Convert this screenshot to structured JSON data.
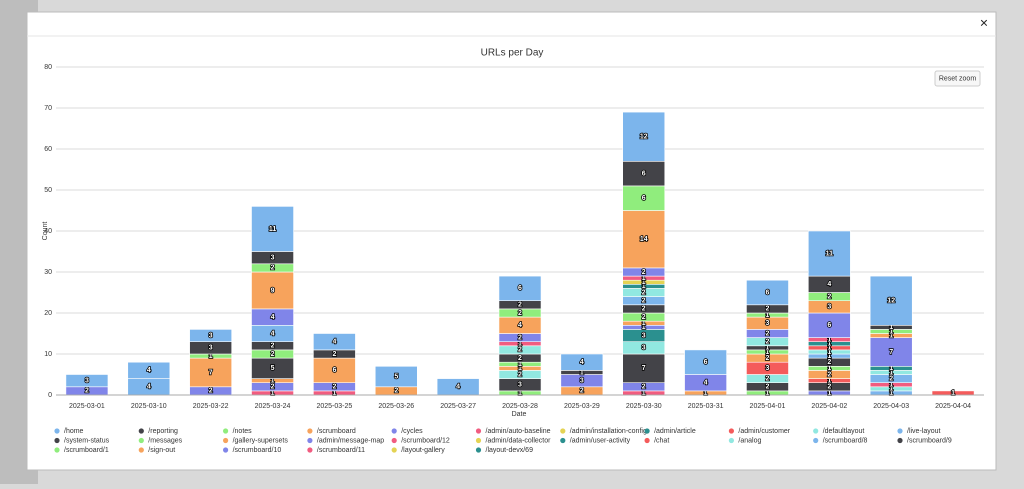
{
  "modal": {
    "close_label": "×",
    "reset_zoom": "Reset zoom"
  },
  "chart_data": {
    "type": "stacked-bar",
    "title": "URLs per Day",
    "x_label": "Date",
    "y_label": "Count",
    "categories": [
      "2025-03-01",
      "2025-03-10",
      "2025-03-22",
      "2025-03-24",
      "2025-03-25",
      "2025-03-26",
      "2025-03-27",
      "2025-03-28",
      "2025-03-29",
      "2025-03-30",
      "2025-03-31",
      "2025-04-01",
      "2025-04-02",
      "2025-04-03",
      "2025-04-04"
    ],
    "ylim": [
      0,
      80
    ],
    "yticks": [
      0,
      10,
      20,
      30,
      40,
      50,
      60,
      70,
      80
    ],
    "grid": true,
    "legend": "bottom",
    "series": [
      {
        "name": "/home",
        "color": "#7cb5ec",
        "values": [
          3,
          4,
          3,
          11,
          4,
          5,
          4,
          6,
          4,
          12,
          6,
          6,
          11,
          12,
          null
        ]
      },
      {
        "name": "/reporting",
        "color": "#434348",
        "values": [
          null,
          null,
          3,
          3,
          2,
          null,
          null,
          2,
          1,
          6,
          null,
          2,
          4,
          1,
          null
        ]
      },
      {
        "name": "/notes",
        "color": "#90ed7d",
        "values": [
          null,
          null,
          1,
          2,
          null,
          null,
          null,
          2,
          null,
          6,
          null,
          1,
          2,
          1,
          null
        ]
      },
      {
        "name": "/scrumboard",
        "color": "#f7a35c",
        "values": [
          null,
          null,
          7,
          9,
          6,
          2,
          null,
          4,
          null,
          14,
          null,
          3,
          3,
          1,
          null
        ]
      },
      {
        "name": "/cycles",
        "color": "#8085e9",
        "values": [
          2,
          null,
          2,
          4,
          2,
          null,
          null,
          2,
          3,
          2,
          4,
          2,
          6,
          7,
          null
        ]
      },
      {
        "name": "/admin/auto-baseline",
        "color": "#f15c80",
        "values": [
          null,
          null,
          null,
          null,
          null,
          null,
          null,
          1,
          null,
          1,
          null,
          null,
          1,
          null,
          null
        ]
      },
      {
        "name": "/admin/installation-config",
        "color": "#e4d354",
        "values": [
          null,
          null,
          null,
          null,
          null,
          null,
          null,
          null,
          null,
          1,
          null,
          null,
          null,
          null,
          null
        ]
      },
      {
        "name": "/admin/article",
        "color": "#2b908f",
        "values": [
          null,
          null,
          null,
          null,
          null,
          null,
          null,
          null,
          null,
          1,
          null,
          null,
          1,
          1,
          null
        ]
      },
      {
        "name": "/admin/customer",
        "color": "#f45b5b",
        "values": [
          null,
          null,
          null,
          null,
          null,
          null,
          null,
          null,
          null,
          null,
          null,
          null,
          1,
          null,
          null
        ]
      },
      {
        "name": "/defaultlayout",
        "color": "#91e8e1",
        "values": [
          null,
          null,
          null,
          null,
          null,
          null,
          null,
          2,
          null,
          2,
          null,
          2,
          1,
          1,
          null
        ]
      },
      {
        "name": "/live-layout",
        "color": "#7cb5ec",
        "values": [
          null,
          null,
          null,
          4,
          null,
          null,
          null,
          null,
          null,
          2,
          null,
          null,
          1,
          2,
          null
        ]
      },
      {
        "name": "/system-status",
        "color": "#434348",
        "values": [
          null,
          null,
          null,
          2,
          null,
          null,
          null,
          2,
          null,
          2,
          null,
          1,
          2,
          null,
          null
        ]
      },
      {
        "name": "/messages",
        "color": "#90ed7d",
        "values": [
          null,
          null,
          null,
          2,
          null,
          null,
          null,
          1,
          null,
          2,
          null,
          1,
          1,
          null,
          null
        ]
      },
      {
        "name": "/gallery-supersets",
        "color": "#f7a35c",
        "values": [
          null,
          null,
          null,
          null,
          null,
          null,
          null,
          1,
          null,
          1,
          null,
          2,
          2,
          null,
          null
        ]
      },
      {
        "name": "/admin/message-map",
        "color": "#8085e9",
        "values": [
          null,
          null,
          null,
          null,
          null,
          null,
          null,
          null,
          null,
          1,
          null,
          null,
          null,
          null,
          null
        ]
      },
      {
        "name": "/scrumboard/12",
        "color": "#f15c80",
        "values": [
          null,
          null,
          null,
          null,
          null,
          null,
          null,
          null,
          null,
          null,
          null,
          null,
          null,
          1,
          null
        ]
      },
      {
        "name": "/admin/data-collector",
        "color": "#e4d354",
        "values": [
          null,
          null,
          null,
          null,
          null,
          null,
          null,
          null,
          null,
          null,
          null,
          null,
          null,
          null,
          null
        ]
      },
      {
        "name": "/admin/user-activity",
        "color": "#2b908f",
        "values": [
          null,
          null,
          null,
          null,
          null,
          null,
          null,
          null,
          null,
          3,
          null,
          null,
          null,
          null,
          null
        ]
      },
      {
        "name": "/chat",
        "color": "#f45b5b",
        "values": [
          null,
          null,
          null,
          null,
          null,
          null,
          null,
          null,
          null,
          null,
          null,
          3,
          1,
          null,
          1
        ]
      },
      {
        "name": "/analog",
        "color": "#91e8e1",
        "values": [
          null,
          null,
          null,
          null,
          null,
          null,
          null,
          2,
          null,
          3,
          null,
          2,
          null,
          1,
          null
        ]
      },
      {
        "name": "/scrumboard/8",
        "color": "#7cb5ec",
        "values": [
          null,
          4,
          null,
          null,
          null,
          null,
          null,
          null,
          null,
          null,
          null,
          null,
          null,
          1,
          null
        ]
      },
      {
        "name": "/scrumboard/9",
        "color": "#434348",
        "values": [
          null,
          null,
          null,
          5,
          null,
          null,
          null,
          3,
          null,
          7,
          null,
          2,
          2,
          null,
          null
        ]
      },
      {
        "name": "/scrumboard/1",
        "color": "#90ed7d",
        "values": [
          null,
          null,
          null,
          null,
          null,
          null,
          null,
          1,
          null,
          null,
          null,
          1,
          null,
          null,
          null
        ]
      },
      {
        "name": "/sign-out",
        "color": "#f7a35c",
        "values": [
          null,
          null,
          null,
          1,
          null,
          null,
          null,
          null,
          2,
          null,
          1,
          null,
          null,
          null,
          null
        ]
      },
      {
        "name": "/scrumboard/10",
        "color": "#8085e9",
        "values": [
          null,
          null,
          null,
          2,
          null,
          null,
          null,
          null,
          null,
          2,
          null,
          null,
          1,
          null,
          null
        ]
      },
      {
        "name": "/scrumboard/11",
        "color": "#f15c80",
        "values": [
          null,
          null,
          null,
          1,
          1,
          null,
          null,
          null,
          null,
          1,
          null,
          null,
          null,
          null,
          null
        ]
      },
      {
        "name": "/layout-gallery",
        "color": "#e4d354",
        "values": [
          null,
          null,
          null,
          null,
          null,
          null,
          null,
          null,
          null,
          null,
          null,
          null,
          null,
          null,
          null
        ]
      },
      {
        "name": "/layout-devx/69",
        "color": "#2b908f",
        "values": [
          null,
          null,
          null,
          null,
          null,
          null,
          null,
          null,
          null,
          null,
          null,
          null,
          null,
          null,
          null
        ]
      }
    ]
  }
}
